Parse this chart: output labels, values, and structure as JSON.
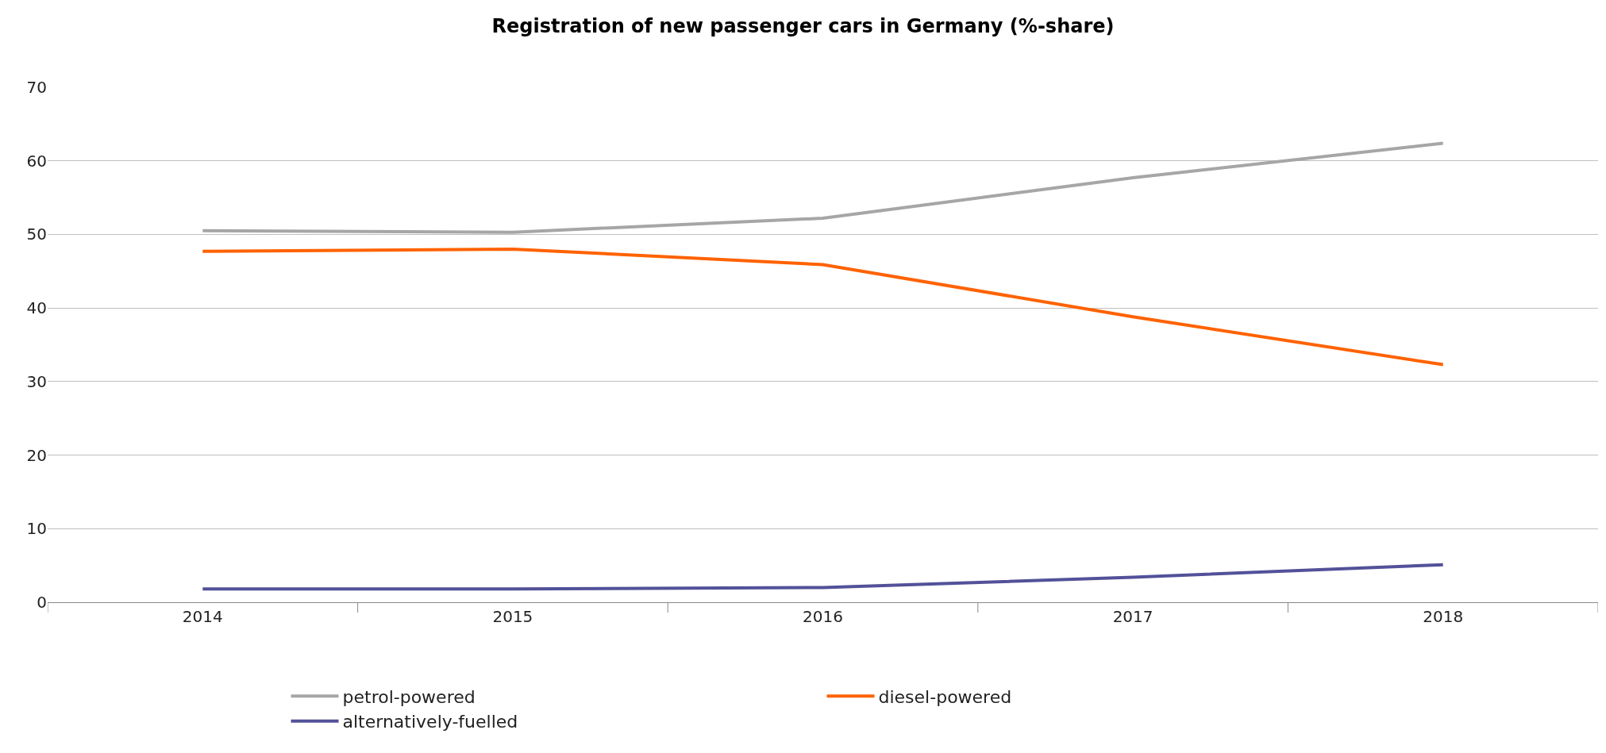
{
  "chart_data": {
    "type": "line",
    "title": "Registration of new passenger cars in Germany (%-share)",
    "categories": [
      "2014",
      "2015",
      "2016",
      "2017",
      "2018"
    ],
    "series": [
      {
        "name": "petrol-powered",
        "color": "#a6a6a6",
        "values": [
          50.5,
          50.3,
          52.2,
          57.7,
          62.4
        ]
      },
      {
        "name": "diesel-powered",
        "color": "#ff6200",
        "values": [
          47.7,
          48.0,
          45.9,
          38.8,
          32.3
        ]
      },
      {
        "name": "alternatively-fuelled",
        "color": "#525199",
        "values": [
          1.8,
          1.8,
          2.0,
          3.4,
          5.1
        ]
      }
    ],
    "ylim": [
      0,
      70
    ],
    "yticks": [
      0,
      10,
      20,
      30,
      40,
      50,
      60,
      70
    ],
    "grid": "y",
    "legend": "bottom",
    "marker": "none",
    "line_style": "solid"
  }
}
